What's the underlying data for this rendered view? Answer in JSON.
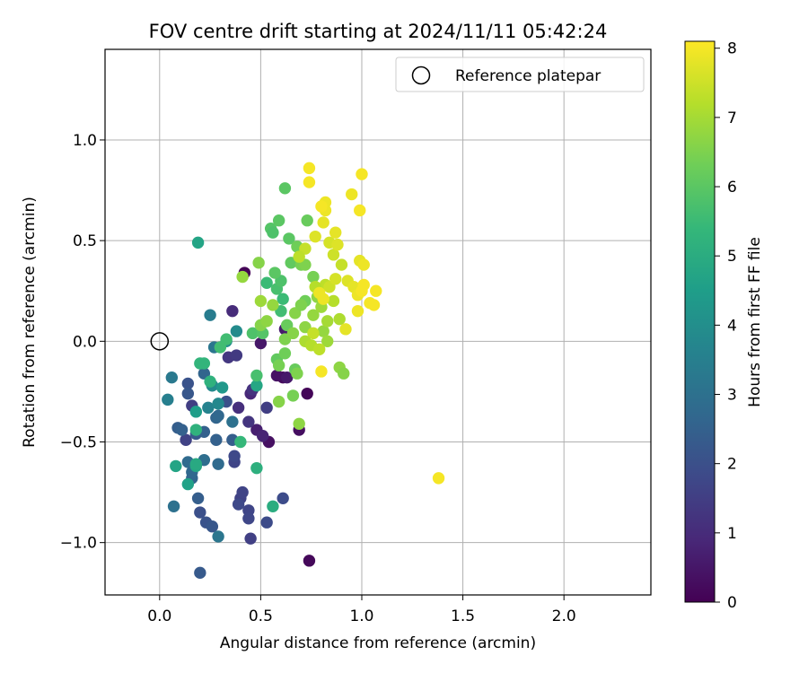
{
  "chart_data": {
    "type": "scatter",
    "title": "FOV centre drift starting at 2024/11/11 05:42:24",
    "xlabel": "Angular distance from reference (arcmin)",
    "ylabel": "Rotation from reference (arcmin)",
    "xlim": [
      -0.27,
      2.43
    ],
    "ylim": [
      -1.26,
      1.45
    ],
    "xticks": [
      0.0,
      0.5,
      1.0,
      1.5,
      2.0
    ],
    "xtick_labels": [
      "0.0",
      "0.5",
      "1.0",
      "1.5",
      "2.0"
    ],
    "yticks": [
      -1.0,
      -0.5,
      0.0,
      0.5,
      1.0
    ],
    "ytick_labels": [
      "−1.0",
      "−0.5",
      "0.0",
      "0.5",
      "1.0"
    ],
    "grid": true,
    "legend": {
      "position": "top-right",
      "entries": [
        "Reference platepar"
      ]
    },
    "reference_point": {
      "x": 0.0,
      "y": 0.0,
      "label": "Reference platepar"
    },
    "colorbar": {
      "label": "Hours from first FF file",
      "min": 0,
      "max": 8.1,
      "ticks": [
        0,
        1,
        2,
        3,
        4,
        5,
        6,
        7,
        8
      ],
      "tick_labels": [
        "0",
        "1",
        "2",
        "3",
        "4",
        "5",
        "6",
        "7",
        "8"
      ],
      "colormap": "viridis",
      "colors": [
        "#440154",
        "#482878",
        "#3e4989",
        "#31688e",
        "#26828e",
        "#1f9e89",
        "#35b779",
        "#6ece58",
        "#b5de2b",
        "#fde725"
      ]
    },
    "points": [
      {
        "x": 0.42,
        "y": 0.34,
        "h": 0.05
      },
      {
        "x": 0.73,
        "y": -0.26,
        "h": 0.1
      },
      {
        "x": 0.74,
        "y": -1.09,
        "h": 0.15
      },
      {
        "x": 0.61,
        "y": -0.18,
        "h": 0.2
      },
      {
        "x": 0.69,
        "y": -0.44,
        "h": 0.3
      },
      {
        "x": 0.54,
        "y": -0.5,
        "h": 0.35
      },
      {
        "x": 0.58,
        "y": -0.17,
        "h": 0.4
      },
      {
        "x": 0.5,
        "y": -0.01,
        "h": 0.5
      },
      {
        "x": 0.63,
        "y": -0.18,
        "h": 0.55
      },
      {
        "x": 0.62,
        "y": 0.06,
        "h": 0.6
      },
      {
        "x": 0.48,
        "y": -0.44,
        "h": 0.7
      },
      {
        "x": 0.51,
        "y": -0.47,
        "h": 0.8
      },
      {
        "x": 0.45,
        "y": -0.26,
        "h": 0.9
      },
      {
        "x": 0.36,
        "y": 0.15,
        "h": 1.0
      },
      {
        "x": 0.39,
        "y": -0.33,
        "h": 1.1
      },
      {
        "x": 0.46,
        "y": -0.24,
        "h": 1.2
      },
      {
        "x": 0.44,
        "y": -0.4,
        "h": 1.25
      },
      {
        "x": 0.34,
        "y": -0.08,
        "h": 1.3
      },
      {
        "x": 0.38,
        "y": -0.07,
        "h": 1.4
      },
      {
        "x": 0.53,
        "y": -0.33,
        "h": 1.5
      },
      {
        "x": 0.45,
        "y": -0.98,
        "h": 1.55
      },
      {
        "x": 0.4,
        "y": -0.78,
        "h": 1.6
      },
      {
        "x": 0.41,
        "y": -0.75,
        "h": 1.65
      },
      {
        "x": 0.44,
        "y": -0.84,
        "h": 1.7
      },
      {
        "x": 0.44,
        "y": -0.88,
        "h": 1.75
      },
      {
        "x": 0.39,
        "y": -0.81,
        "h": 1.8
      },
      {
        "x": 0.53,
        "y": -0.9,
        "h": 1.85
      },
      {
        "x": 0.61,
        "y": -0.78,
        "h": 1.9
      },
      {
        "x": 0.16,
        "y": -0.32,
        "h": 1.5
      },
      {
        "x": 0.13,
        "y": -0.49,
        "h": 1.6
      },
      {
        "x": 0.37,
        "y": -0.6,
        "h": 1.7
      },
      {
        "x": 0.37,
        "y": -0.57,
        "h": 1.8
      },
      {
        "x": 0.33,
        "y": -0.3,
        "h": 2.0
      },
      {
        "x": 0.2,
        "y": -0.85,
        "h": 2.0
      },
      {
        "x": 0.23,
        "y": -0.9,
        "h": 2.1
      },
      {
        "x": 0.26,
        "y": -0.92,
        "h": 2.2
      },
      {
        "x": 0.2,
        "y": -1.15,
        "h": 2.3
      },
      {
        "x": 0.19,
        "y": -0.78,
        "h": 2.4
      },
      {
        "x": 0.14,
        "y": -0.21,
        "h": 2.1
      },
      {
        "x": 0.14,
        "y": -0.26,
        "h": 2.2
      },
      {
        "x": 0.18,
        "y": -0.46,
        "h": 2.3
      },
      {
        "x": 0.09,
        "y": -0.43,
        "h": 2.4
      },
      {
        "x": 0.11,
        "y": -0.44,
        "h": 2.5
      },
      {
        "x": 0.22,
        "y": -0.45,
        "h": 2.5
      },
      {
        "x": 0.28,
        "y": -0.49,
        "h": 2.5
      },
      {
        "x": 0.36,
        "y": -0.49,
        "h": 2.4
      },
      {
        "x": 0.28,
        "y": -0.38,
        "h": 2.6
      },
      {
        "x": 0.29,
        "y": -0.37,
        "h": 2.7
      },
      {
        "x": 0.22,
        "y": -0.16,
        "h": 2.6
      },
      {
        "x": 0.26,
        "y": -0.22,
        "h": 2.8
      },
      {
        "x": 0.22,
        "y": -0.59,
        "h": 2.9
      },
      {
        "x": 0.29,
        "y": -0.61,
        "h": 2.8
      },
      {
        "x": 0.16,
        "y": -0.68,
        "h": 2.6
      },
      {
        "x": 0.16,
        "y": -0.65,
        "h": 2.7
      },
      {
        "x": 0.14,
        "y": -0.6,
        "h": 2.8
      },
      {
        "x": 0.36,
        "y": -0.4,
        "h": 3.0
      },
      {
        "x": 0.07,
        "y": -0.82,
        "h": 3.0
      },
      {
        "x": 0.29,
        "y": -0.97,
        "h": 3.2
      },
      {
        "x": 0.27,
        "y": -0.03,
        "h": 3.2
      },
      {
        "x": 0.25,
        "y": 0.13,
        "h": 3.4
      },
      {
        "x": 0.06,
        "y": -0.18,
        "h": 3.3
      },
      {
        "x": 0.04,
        "y": -0.29,
        "h": 3.5
      },
      {
        "x": 0.24,
        "y": -0.33,
        "h": 3.6
      },
      {
        "x": 0.29,
        "y": -0.31,
        "h": 3.8
      },
      {
        "x": 0.26,
        "y": -0.22,
        "h": 3.9
      },
      {
        "x": 0.38,
        "y": 0.05,
        "h": 3.9
      },
      {
        "x": 0.33,
        "y": 0.0,
        "h": 4.0
      },
      {
        "x": 0.31,
        "y": -0.23,
        "h": 4.3
      },
      {
        "x": 0.18,
        "y": -0.35,
        "h": 4.5
      },
      {
        "x": 0.14,
        "y": -0.71,
        "h": 4.6
      },
      {
        "x": 0.08,
        "y": -0.62,
        "h": 4.7
      },
      {
        "x": 0.18,
        "y": -0.62,
        "h": 4.8
      },
      {
        "x": 0.18,
        "y": -0.61,
        "h": 4.9
      },
      {
        "x": 0.19,
        "y": 0.49,
        "h": 4.7
      },
      {
        "x": 0.48,
        "y": -0.22,
        "h": 4.8
      },
      {
        "x": 0.48,
        "y": -0.63,
        "h": 5.1
      },
      {
        "x": 0.56,
        "y": -0.82,
        "h": 5.0
      },
      {
        "x": 0.18,
        "y": -0.44,
        "h": 5.2
      },
      {
        "x": 0.2,
        "y": -0.11,
        "h": 5.3
      },
      {
        "x": 0.22,
        "y": -0.11,
        "h": 5.3
      },
      {
        "x": 0.4,
        "y": -0.5,
        "h": 5.4
      },
      {
        "x": 0.25,
        "y": -0.2,
        "h": 5.2
      },
      {
        "x": 0.33,
        "y": 0.01,
        "h": 5.6
      },
      {
        "x": 0.3,
        "y": -0.03,
        "h": 5.6
      },
      {
        "x": 0.48,
        "y": -0.17,
        "h": 5.7
      },
      {
        "x": 0.46,
        "y": 0.04,
        "h": 5.8
      },
      {
        "x": 0.51,
        "y": 0.04,
        "h": 5.9
      },
      {
        "x": 0.53,
        "y": 0.29,
        "h": 5.5
      },
      {
        "x": 0.58,
        "y": 0.26,
        "h": 5.7
      },
      {
        "x": 0.6,
        "y": 0.3,
        "h": 5.8
      },
      {
        "x": 0.61,
        "y": 0.21,
        "h": 5.5
      },
      {
        "x": 0.6,
        "y": 0.15,
        "h": 5.6
      },
      {
        "x": 0.55,
        "y": 0.56,
        "h": 5.9
      },
      {
        "x": 0.62,
        "y": 0.76,
        "h": 6.0
      },
      {
        "x": 0.59,
        "y": 0.6,
        "h": 6.0
      },
      {
        "x": 0.56,
        "y": 0.54,
        "h": 5.8
      },
      {
        "x": 0.57,
        "y": 0.34,
        "h": 6.0
      },
      {
        "x": 0.65,
        "y": 0.39,
        "h": 6.1
      },
      {
        "x": 0.64,
        "y": 0.51,
        "h": 6.0
      },
      {
        "x": 0.68,
        "y": 0.47,
        "h": 6.3
      },
      {
        "x": 0.7,
        "y": 0.38,
        "h": 6.4
      },
      {
        "x": 0.73,
        "y": 0.6,
        "h": 6.2
      },
      {
        "x": 0.72,
        "y": 0.38,
        "h": 6.5
      },
      {
        "x": 0.76,
        "y": 0.32,
        "h": 6.4
      },
      {
        "x": 0.72,
        "y": 0.2,
        "h": 6.3
      },
      {
        "x": 0.63,
        "y": 0.08,
        "h": 6.2
      },
      {
        "x": 0.58,
        "y": -0.09,
        "h": 6.1
      },
      {
        "x": 0.62,
        "y": -0.06,
        "h": 6.3
      },
      {
        "x": 0.59,
        "y": -0.12,
        "h": 6.4
      },
      {
        "x": 0.67,
        "y": -0.14,
        "h": 6.2
      },
      {
        "x": 0.68,
        "y": -0.16,
        "h": 6.5
      },
      {
        "x": 0.66,
        "y": -0.27,
        "h": 6.4
      },
      {
        "x": 0.59,
        "y": -0.3,
        "h": 6.6
      },
      {
        "x": 0.69,
        "y": -0.41,
        "h": 6.7
      },
      {
        "x": 0.5,
        "y": 0.08,
        "h": 6.6
      },
      {
        "x": 0.53,
        "y": 0.1,
        "h": 6.7
      },
      {
        "x": 0.56,
        "y": 0.18,
        "h": 6.8
      },
      {
        "x": 0.5,
        "y": 0.2,
        "h": 6.9
      },
      {
        "x": 0.49,
        "y": 0.39,
        "h": 6.6
      },
      {
        "x": 0.41,
        "y": 0.32,
        "h": 6.8
      },
      {
        "x": 0.62,
        "y": 0.01,
        "h": 6.5
      },
      {
        "x": 0.66,
        "y": 0.04,
        "h": 6.6
      },
      {
        "x": 0.72,
        "y": 0.07,
        "h": 6.7
      },
      {
        "x": 0.67,
        "y": 0.14,
        "h": 6.6
      },
      {
        "x": 0.7,
        "y": 0.18,
        "h": 6.5
      },
      {
        "x": 0.76,
        "y": 0.13,
        "h": 6.8
      },
      {
        "x": 0.78,
        "y": 0.22,
        "h": 6.7
      },
      {
        "x": 0.8,
        "y": 0.17,
        "h": 6.9
      },
      {
        "x": 0.81,
        "y": 0.05,
        "h": 6.8
      },
      {
        "x": 0.83,
        "y": 0.0,
        "h": 6.9
      },
      {
        "x": 0.83,
        "y": 0.1,
        "h": 7.0
      },
      {
        "x": 0.89,
        "y": -0.13,
        "h": 6.7
      },
      {
        "x": 0.91,
        "y": -0.16,
        "h": 6.6
      },
      {
        "x": 0.89,
        "y": 0.11,
        "h": 7.1
      },
      {
        "x": 0.86,
        "y": 0.2,
        "h": 7.2
      },
      {
        "x": 0.82,
        "y": 0.28,
        "h": 7.3
      },
      {
        "x": 0.77,
        "y": 0.27,
        "h": 7.2
      },
      {
        "x": 0.72,
        "y": 0.46,
        "h": 7.4
      },
      {
        "x": 0.69,
        "y": 0.42,
        "h": 7.3
      },
      {
        "x": 0.76,
        "y": 0.04,
        "h": 7.4
      },
      {
        "x": 0.72,
        "y": 0.0,
        "h": 7.1
      },
      {
        "x": 0.75,
        "y": -0.02,
        "h": 7.2
      },
      {
        "x": 0.79,
        "y": -0.04,
        "h": 7.3
      },
      {
        "x": 0.84,
        "y": 0.27,
        "h": 7.5
      },
      {
        "x": 0.87,
        "y": 0.31,
        "h": 7.6
      },
      {
        "x": 0.9,
        "y": 0.38,
        "h": 7.4
      },
      {
        "x": 0.86,
        "y": 0.43,
        "h": 7.5
      },
      {
        "x": 0.84,
        "y": 0.49,
        "h": 7.6
      },
      {
        "x": 0.88,
        "y": 0.48,
        "h": 7.7
      },
      {
        "x": 0.77,
        "y": 0.52,
        "h": 7.7
      },
      {
        "x": 0.81,
        "y": 0.59,
        "h": 7.8
      },
      {
        "x": 0.82,
        "y": 0.65,
        "h": 7.9
      },
      {
        "x": 0.82,
        "y": 0.69,
        "h": 7.9
      },
      {
        "x": 0.8,
        "y": 0.67,
        "h": 8.0
      },
      {
        "x": 0.74,
        "y": 0.79,
        "h": 8.0
      },
      {
        "x": 0.74,
        "y": 0.86,
        "h": 8.0
      },
      {
        "x": 0.87,
        "y": 0.54,
        "h": 7.8
      },
      {
        "x": 0.95,
        "y": 0.73,
        "h": 7.9
      },
      {
        "x": 0.99,
        "y": 0.65,
        "h": 8.0
      },
      {
        "x": 1.0,
        "y": 0.83,
        "h": 8.0
      },
      {
        "x": 0.99,
        "y": 0.4,
        "h": 7.8
      },
      {
        "x": 1.01,
        "y": 0.38,
        "h": 7.9
      },
      {
        "x": 0.93,
        "y": 0.3,
        "h": 7.7
      },
      {
        "x": 0.96,
        "y": 0.27,
        "h": 7.8
      },
      {
        "x": 0.98,
        "y": 0.23,
        "h": 7.9
      },
      {
        "x": 1.0,
        "y": 0.25,
        "h": 8.0
      },
      {
        "x": 1.01,
        "y": 0.28,
        "h": 8.0
      },
      {
        "x": 1.07,
        "y": 0.25,
        "h": 8.0
      },
      {
        "x": 1.04,
        "y": 0.19,
        "h": 8.0
      },
      {
        "x": 1.06,
        "y": 0.18,
        "h": 8.0
      },
      {
        "x": 0.98,
        "y": 0.15,
        "h": 7.9
      },
      {
        "x": 0.92,
        "y": 0.06,
        "h": 7.8
      },
      {
        "x": 0.8,
        "y": -0.15,
        "h": 8.0
      },
      {
        "x": 0.79,
        "y": 0.24,
        "h": 7.9
      },
      {
        "x": 0.81,
        "y": 0.21,
        "h": 7.9
      },
      {
        "x": 1.38,
        "y": -0.68,
        "h": 8.0
      }
    ]
  }
}
